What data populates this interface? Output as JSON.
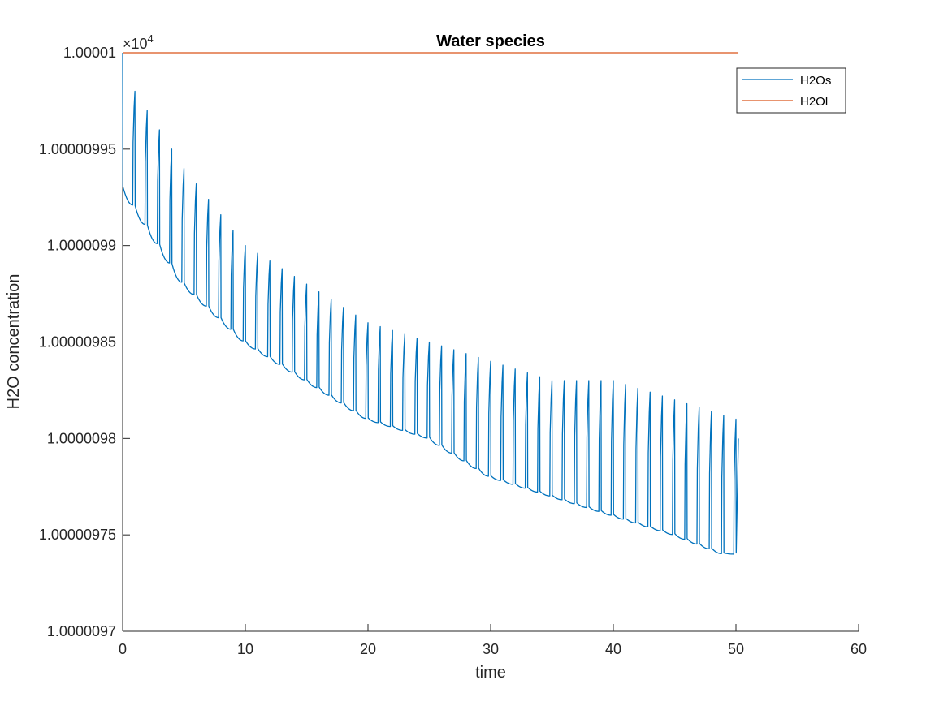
{
  "chart_data": {
    "type": "line",
    "title": "Water species",
    "xlabel": "time",
    "ylabel": "H2O concentration",
    "xlim": [
      0,
      60
    ],
    "ylim": [
      1.0000097,
      1.00001
    ],
    "x_ticks": [
      0,
      10,
      20,
      30,
      40,
      50,
      60
    ],
    "x_tick_labels": [
      "0",
      "10",
      "20",
      "30",
      "40",
      "50",
      "60"
    ],
    "y_ticks": [
      1.0000097,
      1.00000975,
      1.0000098,
      1.00000985,
      1.0000099,
      1.00000995,
      1.00001
    ],
    "y_tick_labels": [
      "1.0000097",
      "1.00000975",
      "1.0000098",
      "1.00000985",
      "1.0000099",
      "1.00000995",
      "1.00001"
    ],
    "y_multiplier": {
      "base": "×10",
      "exponent": "4"
    },
    "grid": false,
    "legend_position": "top-right",
    "series": [
      {
        "name": "H2Os",
        "color": "#0072BD",
        "pattern": "sawtooth",
        "x_range": [
          0,
          50.2
        ],
        "period": 1,
        "peaks": [
          {
            "x": 0,
            "y": 1.00001
          },
          {
            "x": 1,
            "y": 1.00000998
          },
          {
            "x": 2,
            "y": 1.00000997
          },
          {
            "x": 3,
            "y": 1.00000996
          },
          {
            "x": 5,
            "y": 1.00000994
          },
          {
            "x": 10,
            "y": 1.0000099
          },
          {
            "x": 15,
            "y": 1.00000988
          },
          {
            "x": 20,
            "y": 1.00000986
          },
          {
            "x": 25,
            "y": 1.00000985
          },
          {
            "x": 30,
            "y": 1.00000984
          },
          {
            "x": 35,
            "y": 1.00000983
          },
          {
            "x": 40,
            "y": 1.00000983
          },
          {
            "x": 45,
            "y": 1.00000982
          },
          {
            "x": 50,
            "y": 1.00000981
          }
        ],
        "troughs": [
          {
            "x": 0,
            "y": 1.00000993
          },
          {
            "x": 1,
            "y": 1.00000992
          },
          {
            "x": 2,
            "y": 1.00000991
          },
          {
            "x": 3,
            "y": 1.0000099
          },
          {
            "x": 5,
            "y": 1.00000988
          },
          {
            "x": 10,
            "y": 1.00000985
          },
          {
            "x": 15,
            "y": 1.00000983
          },
          {
            "x": 20,
            "y": 1.00000981
          },
          {
            "x": 25,
            "y": 1.0000098
          },
          {
            "x": 30,
            "y": 1.00000978
          },
          {
            "x": 35,
            "y": 1.00000977
          },
          {
            "x": 40,
            "y": 1.00000976
          },
          {
            "x": 45,
            "y": 1.00000975
          },
          {
            "x": 49,
            "y": 1.00000974
          }
        ],
        "end": {
          "x": 50.2,
          "y": 1.0000098
        }
      },
      {
        "name": "H2Ol",
        "color": "#D95319",
        "x": [
          0,
          50.2
        ],
        "y": [
          1.00001,
          1.00001
        ]
      }
    ]
  }
}
